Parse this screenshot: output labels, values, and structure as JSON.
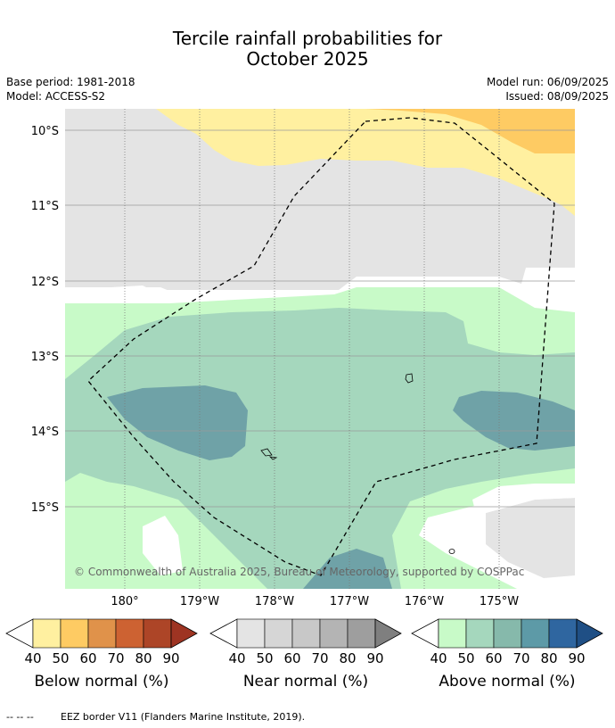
{
  "title_line1": "Tercile rainfall probabilities for",
  "title_line2": "October 2025",
  "base_period": "Base period: 1981-2018",
  "model": "Model: ACCESS-S2",
  "model_run": "Model run: 06/09/2025",
  "issued": "Issued: 08/09/2025",
  "lat_labels": [
    "10°S",
    "11°S",
    "12°S",
    "13°S",
    "14°S",
    "15°S"
  ],
  "lon_labels": [
    "180°",
    "179°W",
    "178°W",
    "177°W",
    "176°W",
    "175°W"
  ],
  "copyright": "© Commonwealth of Australia 2025, Bureau of Meteorology, supported by COSPPac",
  "colorbars": [
    {
      "label": "Below normal (%)",
      "ticks": [
        "40",
        "50",
        "60",
        "70",
        "80",
        "90"
      ],
      "colors": [
        "#fff0a0",
        "#fecb63",
        "#e0924a",
        "#cd6232",
        "#ad4527",
        "#9e3422"
      ]
    },
    {
      "label": "Near normal (%)",
      "ticks": [
        "40",
        "50",
        "60",
        "70",
        "80",
        "90"
      ],
      "colors": [
        "#e4e4e4",
        "#d6d6d6",
        "#c8c8c8",
        "#b4b4b4",
        "#9e9e9e",
        "#7f7f7f"
      ]
    },
    {
      "label": "Above normal (%)",
      "ticks": [
        "40",
        "50",
        "60",
        "70",
        "80",
        "90"
      ],
      "colors": [
        "#c8fac8",
        "#a5d7bd",
        "#86b9ab",
        "#5d9aa7",
        "#2f66a0",
        "#1f4f85"
      ]
    }
  ],
  "legend_marker": "-- -- --",
  "footer_text": "EEZ border V11 (Flanders Marine Institute, 2019)."
}
